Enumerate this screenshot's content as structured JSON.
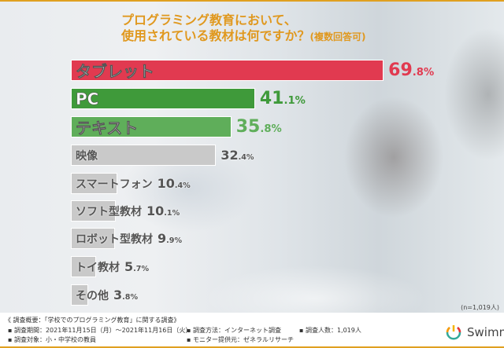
{
  "colors": {
    "accent": "#e0981e",
    "tablet": "#e13a50",
    "green1": "#3f9a3a",
    "green2": "#5fae5a",
    "gray": "#c9c9c9"
  },
  "title_line1": "プログラミング教育において、",
  "title_line2": "使用されている教材は何ですか？",
  "title_note": "(複数回答可)",
  "note": "(n=1,019人)",
  "chart_data": {
    "type": "bar",
    "orientation": "horizontal",
    "title": "プログラミング教育において、使用されている教材は何ですか？(複数回答可)",
    "unit": "%",
    "xlim": [
      0,
      100
    ],
    "categories": [
      "タブレット",
      "PC",
      "テキスト",
      "映像",
      "スマートフォン",
      "ソフト型教材",
      "ロボット型教材",
      "トイ教材",
      "その他"
    ],
    "values": [
      69.8,
      41.1,
      35.8,
      32.4,
      10.4,
      10.1,
      9.9,
      5.7,
      3.8
    ],
    "value_int": [
      "69",
      "41",
      "35",
      "32",
      "10",
      "10",
      "9",
      "5",
      "3"
    ],
    "value_dec": [
      ".8%",
      ".1%",
      ".8%",
      ".4%",
      ".4%",
      ".1%",
      ".9%",
      ".7%",
      ".8%"
    ]
  },
  "footer": {
    "heading": "《 調査概要：「学校でのプログラミング教育」に関する調査》",
    "period": "▪ 調査期間：2021年11月15日（月）～2021年11月16日（火）",
    "target": "▪ 調査対象：小・中学校の教員",
    "method": "▪ 調査方法：インターネット調査",
    "provider": "▪ モニター提供元：ゼネラルリサーチ",
    "count": "▪ 調査人数：1,019人"
  },
  "logo": "Swimmy"
}
